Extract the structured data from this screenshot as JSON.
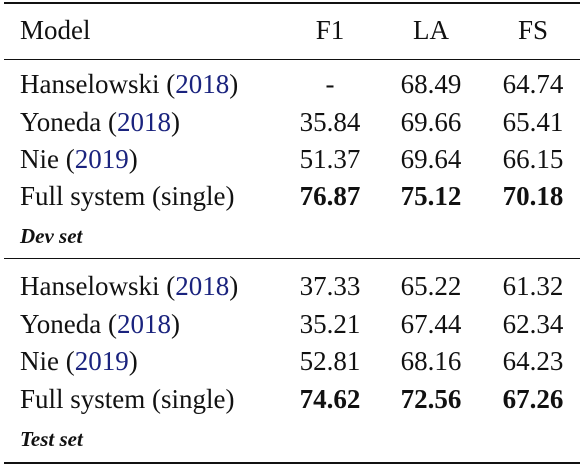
{
  "header": {
    "model": "Model",
    "f1": "F1",
    "la": "LA",
    "fs": "FS"
  },
  "dev": {
    "label": "Dev set",
    "rows": [
      {
        "name": "Hanselowski (",
        "cite": "2018",
        "close": ")",
        "f1": "-",
        "la": "68.49",
        "fs": "64.74",
        "bold": false
      },
      {
        "name": "Yoneda (",
        "cite": "2018",
        "close": ")",
        "f1": "35.84",
        "la": "69.66",
        "fs": "65.41",
        "bold": false
      },
      {
        "name": "Nie (",
        "cite": "2019",
        "close": ")",
        "f1": "51.37",
        "la": "69.64",
        "fs": "66.15",
        "bold": false
      },
      {
        "name": "Full system (single)",
        "cite": "",
        "close": "",
        "f1": "76.87",
        "la": "75.12",
        "fs": "70.18",
        "bold": true
      }
    ]
  },
  "test": {
    "label": "Test set",
    "rows": [
      {
        "name": "Hanselowski (",
        "cite": "2018",
        "close": ")",
        "f1": "37.33",
        "la": "65.22",
        "fs": "61.32",
        "bold": false
      },
      {
        "name": "Yoneda (",
        "cite": "2018",
        "close": ")",
        "f1": "35.21",
        "la": "67.44",
        "fs": "62.34",
        "bold": false
      },
      {
        "name": "Nie (",
        "cite": "2019",
        "close": ")",
        "f1": "52.81",
        "la": "68.16",
        "fs": "64.23",
        "bold": false
      },
      {
        "name": "Full system (single)",
        "cite": "",
        "close": "",
        "f1": "74.62",
        "la": "72.56",
        "fs": "67.26",
        "bold": true
      }
    ]
  }
}
